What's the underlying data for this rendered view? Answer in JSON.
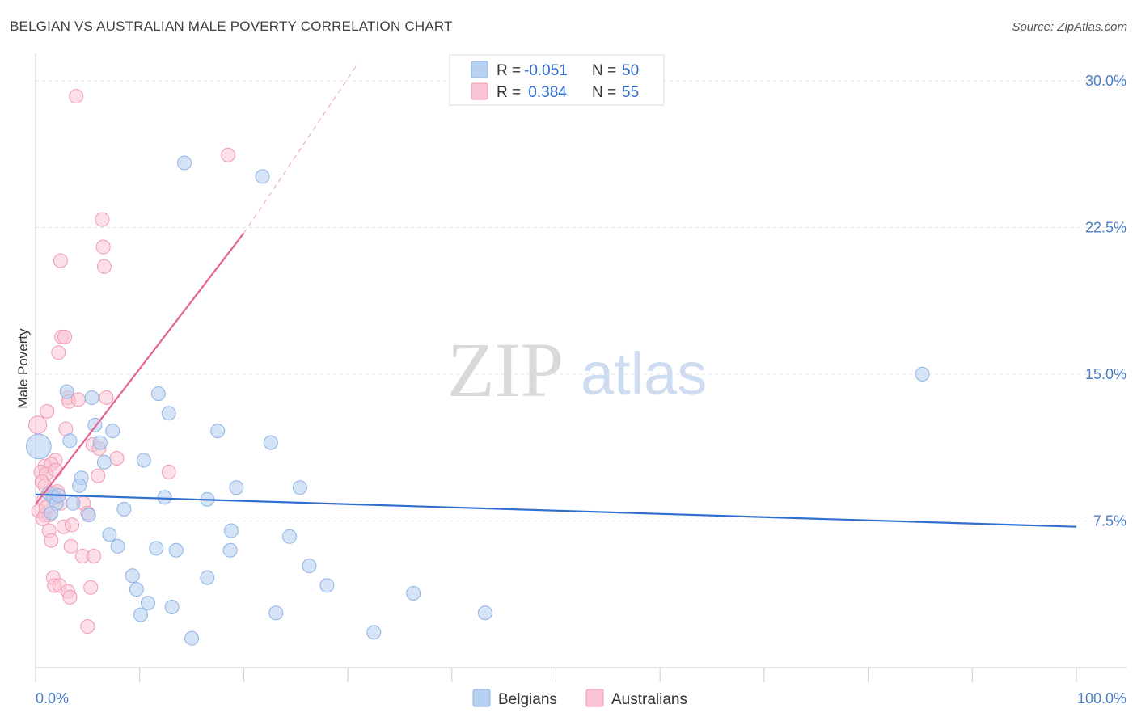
{
  "header": {
    "title": "BELGIAN VS AUSTRALIAN MALE POVERTY CORRELATION CHART",
    "source": "Source: ZipAtlas.com"
  },
  "watermark": {
    "zip": "ZIP",
    "atlas": "atlas"
  },
  "colors": {
    "belgians_fill": "#b9d1f1",
    "belgians_stroke": "#8fb3e6",
    "belgians_line": "#2f6fd0",
    "australians_fill": "#f9c4d3",
    "australians_stroke": "#f09ab4",
    "australians_line": "#e5628e",
    "value_text": "#2f6fd0",
    "grid": "#e2e2e2"
  },
  "legend": {
    "rows": [
      {
        "r_label": "R =",
        "r_value": "-0.051",
        "n_label": "N =",
        "n_value": "50"
      },
      {
        "r_label": "R =",
        "r_value": " 0.384",
        "n_label": "N =",
        "n_value": "55"
      }
    ]
  },
  "bottom_legend": {
    "belgians": "Belgians",
    "australians": "Australians"
  },
  "chart_data": {
    "type": "scatter",
    "title": "BELGIAN VS AUSTRALIAN MALE POVERTY CORRELATION CHART",
    "xlabel": "",
    "ylabel": "Male Poverty",
    "xlim": [
      0,
      100
    ],
    "ylim": [
      0,
      30.9
    ],
    "x_tick_labels": [
      "0.0%",
      "100.0%"
    ],
    "y_ticks": [
      7.5,
      15.0,
      22.5,
      30.0
    ],
    "y_tick_labels": [
      "7.5%",
      "15.0%",
      "22.5%",
      "30.0%"
    ],
    "grid": true,
    "series": [
      {
        "name": "Belgians",
        "r": -0.051,
        "n": 50,
        "trend": {
          "x0": 0,
          "y0": 8.85,
          "x1": 100,
          "y1": 7.2
        },
        "points": [
          [
            0.3,
            11.3,
            1.8
          ],
          [
            14.3,
            25.8,
            1
          ],
          [
            21.8,
            25.1,
            1
          ],
          [
            3.0,
            14.1,
            1
          ],
          [
            5.4,
            13.8,
            1
          ],
          [
            11.8,
            14.0,
            1
          ],
          [
            12.8,
            13.0,
            1
          ],
          [
            5.7,
            12.4,
            1
          ],
          [
            7.4,
            12.1,
            1
          ],
          [
            17.5,
            12.1,
            1
          ],
          [
            3.3,
            11.6,
            1
          ],
          [
            6.2,
            11.5,
            1
          ],
          [
            22.6,
            11.5,
            1
          ],
          [
            6.6,
            10.5,
            1
          ],
          [
            10.4,
            10.6,
            1
          ],
          [
            4.4,
            9.7,
            1
          ],
          [
            4.2,
            9.3,
            1
          ],
          [
            19.3,
            9.2,
            1
          ],
          [
            25.4,
            9.2,
            1
          ],
          [
            1.3,
            8.9,
            1
          ],
          [
            1.7,
            8.7,
            1
          ],
          [
            12.4,
            8.7,
            1
          ],
          [
            16.5,
            8.6,
            1
          ],
          [
            2.0,
            8.4,
            1
          ],
          [
            3.6,
            8.4,
            1
          ],
          [
            1.5,
            7.9,
            1
          ],
          [
            5.1,
            7.8,
            1
          ],
          [
            8.5,
            8.1,
            1
          ],
          [
            18.8,
            7.0,
            1
          ],
          [
            7.1,
            6.8,
            1
          ],
          [
            24.4,
            6.7,
            1
          ],
          [
            7.9,
            6.2,
            1
          ],
          [
            11.6,
            6.1,
            1
          ],
          [
            13.5,
            6.0,
            1
          ],
          [
            18.7,
            6.0,
            1
          ],
          [
            26.3,
            5.2,
            1
          ],
          [
            9.3,
            4.7,
            1
          ],
          [
            16.5,
            4.6,
            1
          ],
          [
            9.7,
            4.0,
            1
          ],
          [
            28.0,
            4.2,
            1
          ],
          [
            36.3,
            3.8,
            1
          ],
          [
            10.8,
            3.3,
            1
          ],
          [
            13.1,
            3.1,
            1
          ],
          [
            10.1,
            2.7,
            1
          ],
          [
            23.1,
            2.8,
            1
          ],
          [
            43.2,
            2.8,
            1
          ],
          [
            32.5,
            1.8,
            1
          ],
          [
            15.0,
            1.5,
            1
          ],
          [
            85.2,
            15.0,
            1
          ],
          [
            2.2,
            8.8,
            1
          ]
        ]
      },
      {
        "name": "Australians",
        "r": 0.384,
        "n": 55,
        "trend": {
          "x0": 0,
          "y0": 8.35,
          "x1": 20,
          "y1": 22.2,
          "dash_x1": 31,
          "dash_y1": 30.9
        },
        "points": [
          [
            0.2,
            12.4,
            1.3
          ],
          [
            3.9,
            29.2,
            1
          ],
          [
            18.5,
            26.2,
            1
          ],
          [
            6.4,
            22.9,
            1
          ],
          [
            6.5,
            21.5,
            1
          ],
          [
            2.4,
            20.8,
            1
          ],
          [
            6.6,
            20.5,
            1
          ],
          [
            2.5,
            16.9,
            1
          ],
          [
            2.8,
            16.9,
            1
          ],
          [
            2.2,
            16.1,
            1
          ],
          [
            3.1,
            13.8,
            1
          ],
          [
            3.2,
            13.6,
            1
          ],
          [
            4.1,
            13.7,
            1
          ],
          [
            6.8,
            13.8,
            1
          ],
          [
            1.1,
            13.1,
            1
          ],
          [
            2.9,
            12.2,
            1
          ],
          [
            5.5,
            11.4,
            1
          ],
          [
            6.1,
            11.2,
            1
          ],
          [
            7.8,
            10.7,
            1
          ],
          [
            1.9,
            10.6,
            1
          ],
          [
            0.9,
            10.3,
            1
          ],
          [
            1.5,
            10.4,
            1
          ],
          [
            0.5,
            10.0,
            1
          ],
          [
            1.0,
            9.9,
            1
          ],
          [
            1.9,
            10.1,
            1
          ],
          [
            6.0,
            9.8,
            1
          ],
          [
            12.8,
            10.0,
            1
          ],
          [
            0.6,
            9.5,
            1
          ],
          [
            0.9,
            9.3,
            1
          ],
          [
            1.7,
            8.9,
            1
          ],
          [
            0.8,
            8.6,
            1
          ],
          [
            1.9,
            8.7,
            1
          ],
          [
            2.4,
            8.4,
            1
          ],
          [
            4.6,
            8.4,
            1
          ],
          [
            0.3,
            8.0,
            1
          ],
          [
            0.9,
            7.8,
            1
          ],
          [
            1.3,
            7.8,
            1
          ],
          [
            0.7,
            7.6,
            1
          ],
          [
            5.0,
            7.9,
            1
          ],
          [
            2.7,
            7.2,
            1
          ],
          [
            3.5,
            7.3,
            1
          ],
          [
            1.3,
            7.0,
            1
          ],
          [
            1.5,
            6.5,
            1
          ],
          [
            3.4,
            6.2,
            1
          ],
          [
            4.5,
            5.7,
            1
          ],
          [
            5.6,
            5.7,
            1
          ],
          [
            1.7,
            4.6,
            1
          ],
          [
            1.8,
            4.2,
            1
          ],
          [
            2.3,
            4.2,
            1
          ],
          [
            3.1,
            3.9,
            1
          ],
          [
            3.3,
            3.6,
            1
          ],
          [
            5.3,
            4.1,
            1
          ],
          [
            5.0,
            2.1,
            1
          ],
          [
            1.0,
            8.2,
            1
          ],
          [
            2.1,
            9.0,
            1
          ]
        ]
      }
    ]
  }
}
